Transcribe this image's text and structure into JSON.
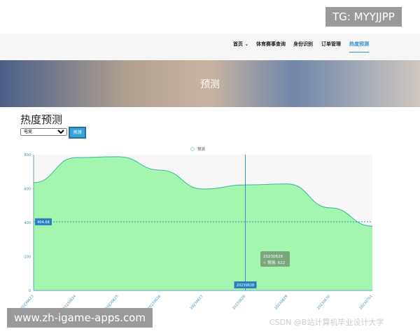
{
  "watermarks": {
    "top": "TG: MYYJJPP",
    "bottom": "www.zh-igame-apps.com",
    "csdn": "CSDN @B站计算机毕业设计大学"
  },
  "nav": {
    "items": [
      "首页 ⌄",
      "体育赛事查询",
      "身份识别",
      "订单管理",
      "热度预测"
    ],
    "active": 4
  },
  "hero": {
    "title": "预测"
  },
  "page": {
    "title": "热度预测",
    "select_value": "电竞",
    "predict_button": "预测"
  },
  "colors": {
    "area": "#a4f5ad",
    "line": "#3ab5a0",
    "accent": "#3a8fd0"
  },
  "chart_data": {
    "type": "area",
    "legend": "预测",
    "legend_position": "top-center",
    "x": [
      "20230623",
      "20230624",
      "20230625",
      "20230626",
      "20230627",
      "20230628",
      "20230629",
      "20230630",
      "20230701"
    ],
    "series": [
      {
        "name": "预测",
        "values": [
          635,
          783,
          788,
          709,
          598,
          622,
          628,
          487,
          379
        ]
      }
    ],
    "ylim": [
      0,
      800
    ],
    "yticks": [
      0,
      200,
      400,
      600,
      800
    ],
    "axis_pointer_y": "404.68",
    "axis_pointer_x": "20230628",
    "tooltip": {
      "title": "20230628",
      "label": "预测: 622"
    }
  }
}
